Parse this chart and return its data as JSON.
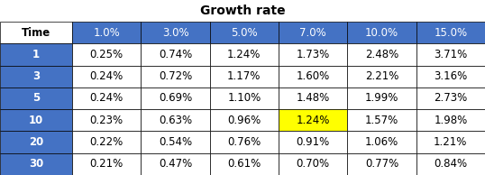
{
  "title": "Growth rate",
  "col_headers": [
    "1.0%",
    "3.0%",
    "5.0%",
    "7.0%",
    "10.0%",
    "15.0%"
  ],
  "row_headers": [
    "Time",
    "1",
    "3",
    "5",
    "10",
    "20",
    "30"
  ],
  "table_data": [
    [
      "0.25%",
      "0.74%",
      "1.24%",
      "1.73%",
      "2.48%",
      "3.71%"
    ],
    [
      "0.24%",
      "0.72%",
      "1.17%",
      "1.60%",
      "2.21%",
      "3.16%"
    ],
    [
      "0.24%",
      "0.69%",
      "1.10%",
      "1.48%",
      "1.99%",
      "2.73%"
    ],
    [
      "0.23%",
      "0.63%",
      "0.96%",
      "1.24%",
      "1.57%",
      "1.98%"
    ],
    [
      "0.22%",
      "0.54%",
      "0.76%",
      "0.91%",
      "1.06%",
      "1.21%"
    ],
    [
      "0.21%",
      "0.47%",
      "0.61%",
      "0.70%",
      "0.77%",
      "0.84%"
    ]
  ],
  "highlight_cell": [
    3,
    4
  ],
  "highlight_color": "#FFFF00",
  "header_bg_color": "#4472C4",
  "header_text_color": "#FFFFFF",
  "row_header_bg_color": "#4472C4",
  "row_header_text_color": "#FFFFFF",
  "time_header_bg_color": "#FFFFFF",
  "time_header_text_color": "#000000",
  "cell_bg_color": "#FFFFFF",
  "cell_text_color": "#000000",
  "grid_color": "#000000",
  "title_fontsize": 10,
  "header_fontsize": 8.5,
  "cell_fontsize": 8.5,
  "row_header_fontsize": 8.5,
  "fig_width": 5.38,
  "fig_height": 1.94,
  "dpi": 100
}
